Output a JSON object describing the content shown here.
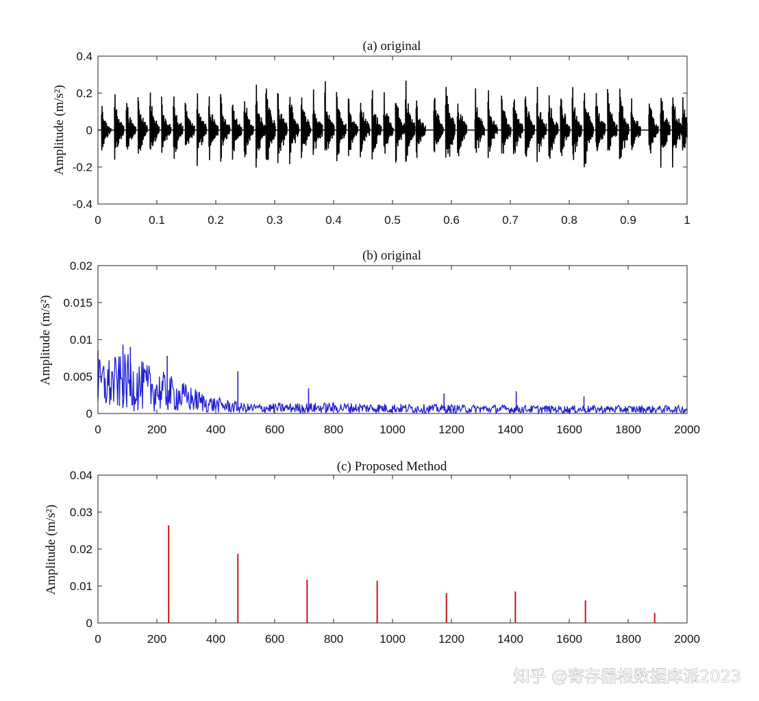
{
  "watermark": "知乎 @寄存器根数据库派2023",
  "chart_data": [
    {
      "id": "a",
      "type": "line",
      "title": "(a) original",
      "ylabel": "Amplitude (m/s²)",
      "xlabel": "",
      "xlim": [
        0,
        1
      ],
      "ylim": [
        -0.4,
        0.4
      ],
      "xticks": [
        "0",
        "0.1",
        "0.2",
        "0.3",
        "0.4",
        "0.5",
        "0.6",
        "0.7",
        "0.8",
        "0.9",
        "1"
      ],
      "yticks": [
        "-0.4",
        "-0.2",
        "0",
        "0.2",
        "0.4"
      ],
      "color": "#000000",
      "grid": false,
      "series": [
        {
          "description_free": true,
          "bursts": [
            {
              "x": 0.006,
              "peak": 0.15
            },
            {
              "x": 0.028,
              "peak": 0.22
            },
            {
              "x": 0.048,
              "peak": 0.21
            },
            {
              "x": 0.068,
              "peak": 0.22
            },
            {
              "x": 0.088,
              "peak": 0.22
            },
            {
              "x": 0.108,
              "peak": 0.2
            },
            {
              "x": 0.128,
              "peak": 0.22
            },
            {
              "x": 0.148,
              "peak": 0.21
            },
            {
              "x": 0.168,
              "peak": 0.22
            },
            {
              "x": 0.188,
              "peak": 0.21
            },
            {
              "x": 0.208,
              "peak": 0.22
            },
            {
              "x": 0.228,
              "peak": 0.21
            },
            {
              "x": 0.248,
              "peak": 0.23
            },
            {
              "x": 0.268,
              "peak": 0.25
            },
            {
              "x": 0.285,
              "peak": 0.33
            },
            {
              "x": 0.305,
              "peak": 0.28
            },
            {
              "x": 0.325,
              "peak": 0.24
            },
            {
              "x": 0.345,
              "peak": 0.25
            },
            {
              "x": 0.365,
              "peak": 0.23
            },
            {
              "x": 0.385,
              "peak": 0.27
            },
            {
              "x": 0.405,
              "peak": 0.24
            },
            {
              "x": 0.425,
              "peak": 0.22
            },
            {
              "x": 0.445,
              "peak": 0.23
            },
            {
              "x": 0.465,
              "peak": 0.22
            },
            {
              "x": 0.485,
              "peak": 0.23
            },
            {
              "x": 0.505,
              "peak": 0.24
            },
            {
              "x": 0.522,
              "peak": 0.27
            },
            {
              "x": 0.54,
              "peak": 0.2
            },
            {
              "x": 0.57,
              "peak": 0.24
            },
            {
              "x": 0.59,
              "peak": 0.36
            },
            {
              "x": 0.61,
              "peak": 0.23
            },
            {
              "x": 0.64,
              "peak": 0.23
            },
            {
              "x": 0.662,
              "peak": 0.22
            },
            {
              "x": 0.685,
              "peak": 0.22
            },
            {
              "x": 0.705,
              "peak": 0.23
            },
            {
              "x": 0.725,
              "peak": 0.24
            },
            {
              "x": 0.745,
              "peak": 0.25
            },
            {
              "x": 0.765,
              "peak": 0.23
            },
            {
              "x": 0.785,
              "peak": 0.25
            },
            {
              "x": 0.805,
              "peak": 0.24
            },
            {
              "x": 0.825,
              "peak": 0.29
            },
            {
              "x": 0.845,
              "peak": 0.26
            },
            {
              "x": 0.865,
              "peak": 0.25
            },
            {
              "x": 0.885,
              "peak": 0.3
            },
            {
              "x": 0.905,
              "peak": 0.22
            },
            {
              "x": 0.935,
              "peak": 0.22
            },
            {
              "x": 0.955,
              "peak": 0.27
            },
            {
              "x": 0.975,
              "peak": 0.26
            },
            {
              "x": 0.992,
              "peak": 0.21
            }
          ]
        }
      ]
    },
    {
      "id": "b",
      "type": "line",
      "title": "(b) original",
      "ylabel": "Amplitude (m/s²)",
      "xlabel": "",
      "xlim": [
        0,
        2000
      ],
      "ylim": [
        0,
        0.02
      ],
      "xticks": [
        "0",
        "200",
        "400",
        "600",
        "800",
        "1000",
        "1200",
        "1400",
        "1600",
        "1800",
        "2000"
      ],
      "yticks": [
        "0",
        "0.005",
        "0.01",
        "0.015",
        "0.02"
      ],
      "color": "#1f1fd6",
      "grid": false,
      "envelope": [
        {
          "x": 0,
          "y": 0.0055
        },
        {
          "x": 100,
          "y": 0.006
        },
        {
          "x": 200,
          "y": 0.0045
        },
        {
          "x": 300,
          "y": 0.003
        },
        {
          "x": 380,
          "y": 0.0018
        },
        {
          "x": 500,
          "y": 0.001
        },
        {
          "x": 800,
          "y": 0.0011
        },
        {
          "x": 1200,
          "y": 0.0009
        },
        {
          "x": 1600,
          "y": 0.0008
        },
        {
          "x": 2000,
          "y": 0.0008
        }
      ],
      "spikes": [
        {
          "x": 0,
          "y": 0.0085
        },
        {
          "x": 85,
          "y": 0.0093
        },
        {
          "x": 110,
          "y": 0.009
        },
        {
          "x": 235,
          "y": 0.0078
        },
        {
          "x": 475,
          "y": 0.0057
        },
        {
          "x": 715,
          "y": 0.0034
        },
        {
          "x": 1175,
          "y": 0.0027
        },
        {
          "x": 1420,
          "y": 0.003
        },
        {
          "x": 1650,
          "y": 0.0023
        }
      ]
    },
    {
      "id": "c",
      "type": "bar",
      "title": "(c) Proposed Method",
      "ylabel": "Amplitude (m/s²)",
      "xlabel": "",
      "xlim": [
        0,
        2000
      ],
      "ylim": [
        0,
        0.04
      ],
      "xticks": [
        "0",
        "200",
        "400",
        "600",
        "800",
        "1000",
        "1200",
        "1400",
        "1600",
        "1800",
        "2000"
      ],
      "yticks": [
        "0",
        "0.01",
        "0.02",
        "0.03",
        "0.04"
      ],
      "color": "#d01010",
      "grid": false,
      "x": [
        240,
        475,
        710,
        948,
        1183,
        1417,
        1655,
        1890
      ],
      "values": [
        0.0264,
        0.0187,
        0.0117,
        0.0114,
        0.0081,
        0.0085,
        0.0061,
        0.0027
      ]
    }
  ]
}
